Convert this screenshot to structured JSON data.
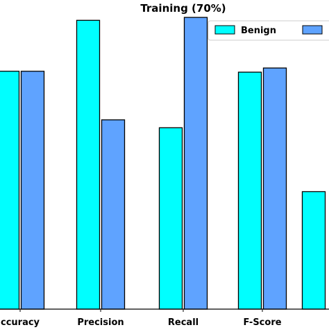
{
  "chart_data": {
    "type": "bar",
    "title": "Training (70%)",
    "categories": [
      "Accuracy",
      "Precision",
      "Recall",
      "F-Score",
      ""
    ],
    "category_labels_visible": [
      "ccuracy",
      "Precision",
      "Recall",
      "F-Score",
      ""
    ],
    "series": [
      {
        "name": "Benign",
        "color": "#00FFFF",
        "values": [
          0.808,
          0.981,
          0.616,
          0.805,
          0.399
        ]
      },
      {
        "name": "",
        "color": "#5FA3FF",
        "values": [
          0.808,
          0.643,
          0.991,
          0.819,
          null
        ]
      }
    ],
    "ylim": [
      0,
      1.05
    ],
    "xlabel": "",
    "ylabel": "",
    "grid": false,
    "legend_position": "top-right"
  }
}
